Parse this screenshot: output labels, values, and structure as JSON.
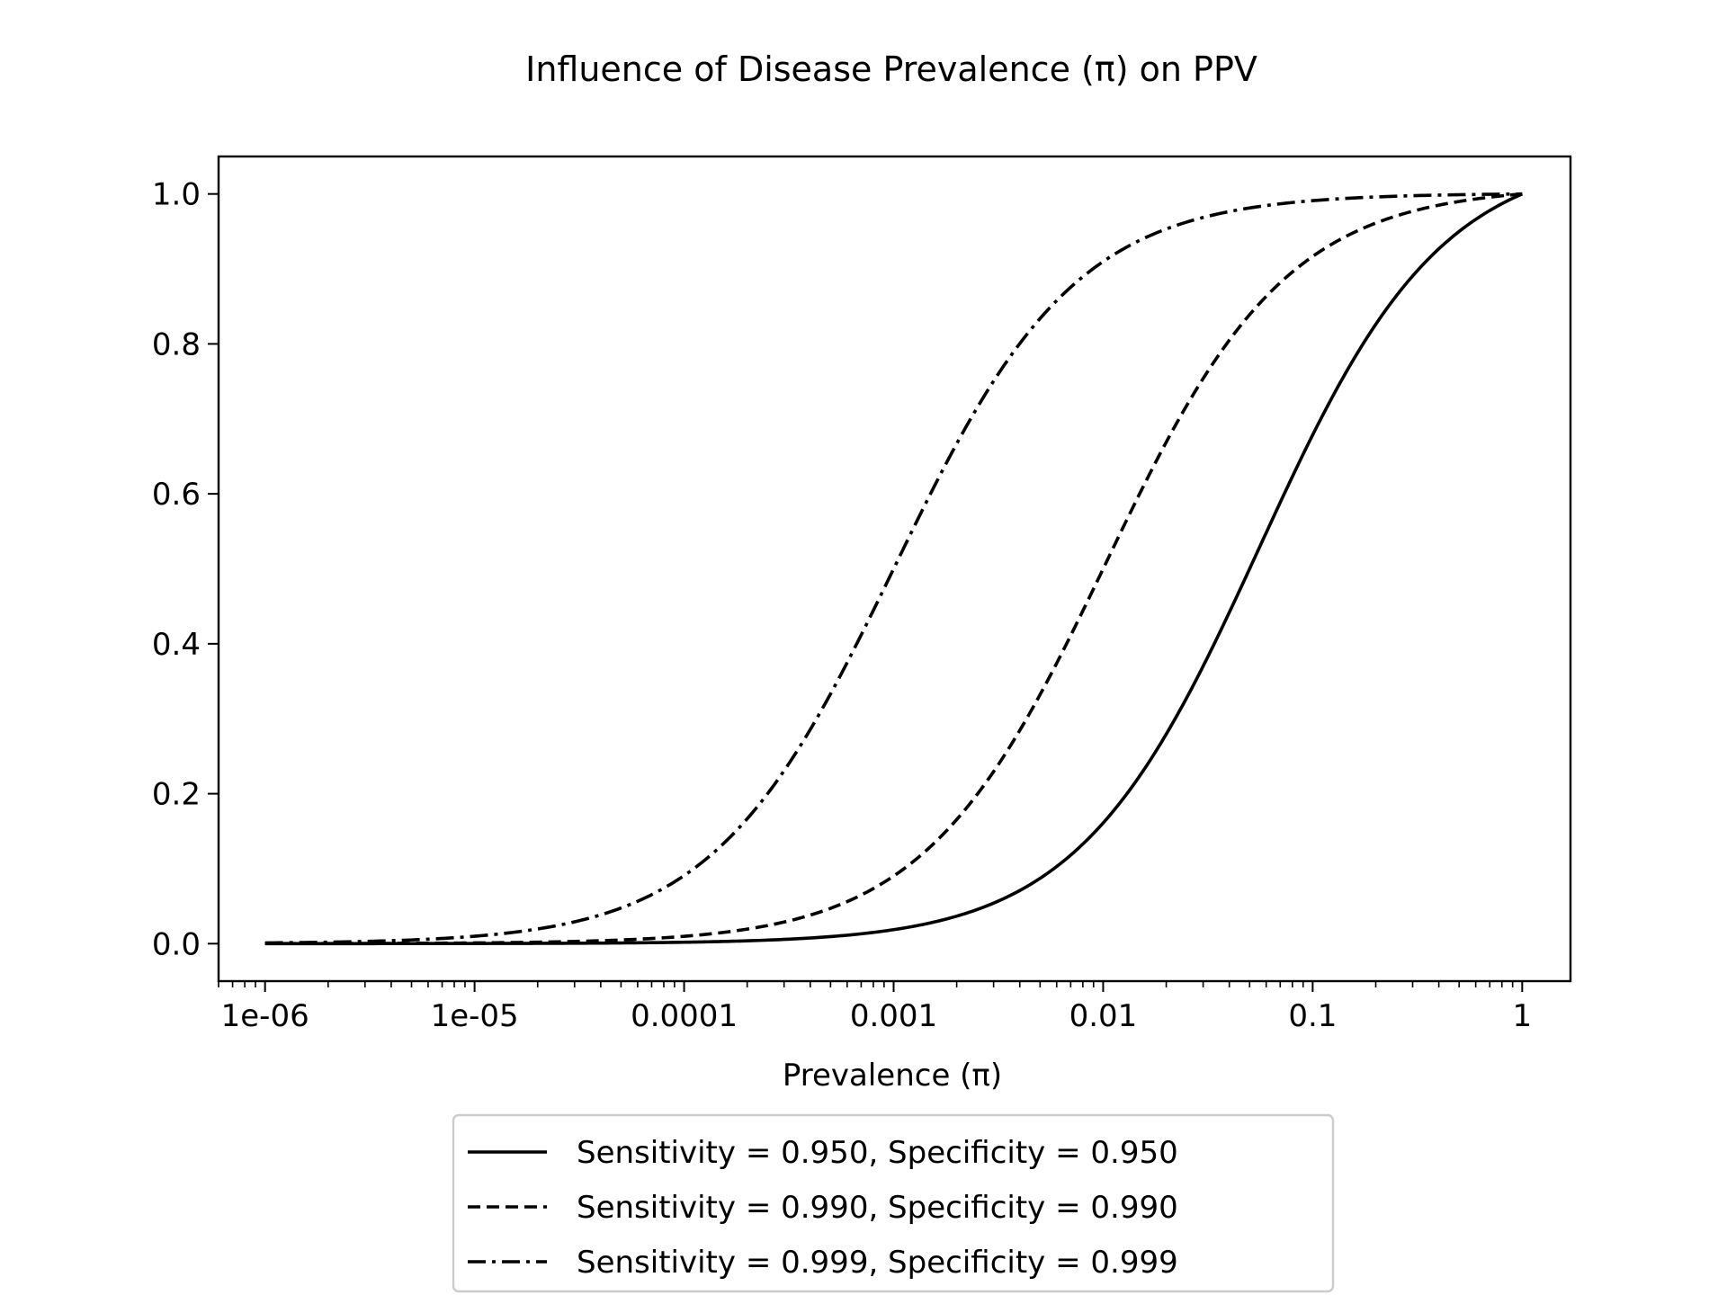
{
  "chart_data": {
    "type": "line",
    "title": "Influence of Disease Prevalence (π) on PPV",
    "xlabel": "Prevalence (π)",
    "ylabel": "",
    "xscale": "log",
    "xlim": [
      6e-07,
      1.7
    ],
    "ylim": [
      -0.05,
      1.05
    ],
    "x_ticks": [
      1e-06,
      1e-05,
      0.0001,
      0.001,
      0.01,
      0.1,
      1
    ],
    "x_tick_labels": [
      "1e-06",
      "1e-05",
      "0.0001",
      "0.001",
      "0.01",
      "0.1",
      "1"
    ],
    "y_ticks": [
      0.0,
      0.2,
      0.4,
      0.6,
      0.8,
      1.0
    ],
    "y_tick_labels": [
      "0.0",
      "0.2",
      "0.4",
      "0.6",
      "0.8",
      "1.0"
    ],
    "grid": false,
    "legend_position": "below plot, centered",
    "line_color": "#000000",
    "series": [
      {
        "name": "Sensitivity = 0.950, Specificity = 0.950",
        "sensitivity": 0.95,
        "specificity": 0.95,
        "style": "solid",
        "x": [
          1e-06,
          1e-05,
          0.0001,
          0.001,
          0.003,
          0.01,
          0.03,
          0.05,
          0.1,
          0.3,
          1
        ],
        "y": [
          1.9e-05,
          0.00019,
          0.0019,
          0.0187,
          0.0541,
          0.161,
          0.37,
          0.5,
          0.679,
          0.891,
          1.0
        ]
      },
      {
        "name": "Sensitivity = 0.990, Specificity = 0.990",
        "sensitivity": 0.99,
        "specificity": 0.99,
        "style": "dashed",
        "x": [
          1e-06,
          1e-05,
          0.0001,
          0.001,
          0.003,
          0.01,
          0.03,
          0.1,
          0.3,
          1
        ],
        "y": [
          9.9e-05,
          0.000989,
          0.0098,
          0.0902,
          0.23,
          0.5,
          0.754,
          0.917,
          0.977,
          1.0
        ]
      },
      {
        "name": "Sensitivity = 0.999, Specificity = 0.999",
        "sensitivity": 0.999,
        "specificity": 0.999,
        "style": "dashdot",
        "x": [
          1e-06,
          1e-05,
          0.0001,
          0.001,
          0.003,
          0.01,
          0.1,
          1
        ],
        "y": [
          0.000999,
          0.00989,
          0.0908,
          0.5,
          0.75,
          0.91,
          0.991,
          1.0
        ]
      }
    ]
  }
}
